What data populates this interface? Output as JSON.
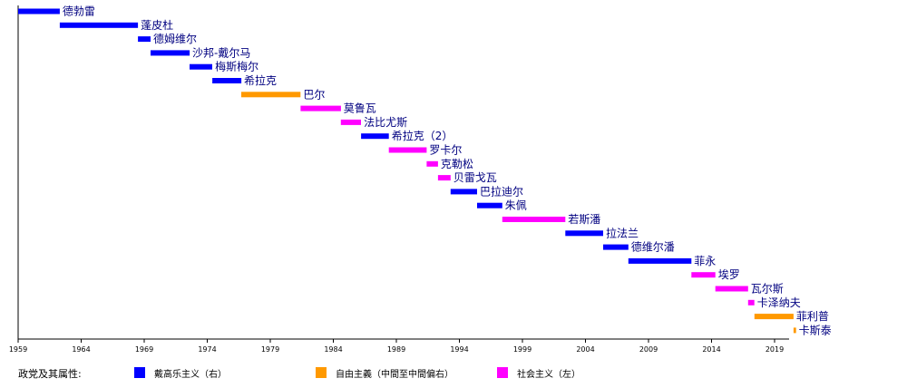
{
  "chart_data": {
    "type": "bar",
    "orientation": "horizontal-timeline",
    "xlim": [
      1959,
      2021
    ],
    "x_ticks": [
      1959,
      1964,
      1969,
      1974,
      1979,
      1984,
      1989,
      1994,
      1999,
      2004,
      2009,
      2014,
      2019
    ],
    "bars": [
      {
        "name": "德勃雷",
        "start": 1959.0,
        "end": 1962.3,
        "party": "gaullist"
      },
      {
        "name": "蓬皮杜",
        "start": 1962.3,
        "end": 1968.5,
        "party": "gaullist"
      },
      {
        "name": "德姆维尔",
        "start": 1968.5,
        "end": 1969.5,
        "party": "gaullist"
      },
      {
        "name": "沙邦-戴尔马",
        "start": 1969.5,
        "end": 1972.6,
        "party": "gaullist"
      },
      {
        "name": "梅斯梅尔",
        "start": 1972.6,
        "end": 1974.4,
        "party": "gaullist"
      },
      {
        "name": "希拉克",
        "start": 1974.4,
        "end": 1976.7,
        "party": "gaullist"
      },
      {
        "name": "巴尔",
        "start": 1976.7,
        "end": 1981.4,
        "party": "liberal"
      },
      {
        "name": "莫鲁瓦",
        "start": 1981.4,
        "end": 1984.6,
        "party": "socialist"
      },
      {
        "name": "法比尤斯",
        "start": 1984.6,
        "end": 1986.2,
        "party": "socialist"
      },
      {
        "name": "希拉克（2）",
        "start": 1986.2,
        "end": 1988.4,
        "party": "gaullist"
      },
      {
        "name": "罗卡尔",
        "start": 1988.4,
        "end": 1991.4,
        "party": "socialist"
      },
      {
        "name": "克勒松",
        "start": 1991.4,
        "end": 1992.3,
        "party": "socialist"
      },
      {
        "name": "贝雷戈瓦",
        "start": 1992.3,
        "end": 1993.3,
        "party": "socialist"
      },
      {
        "name": "巴拉迪尔",
        "start": 1993.3,
        "end": 1995.4,
        "party": "gaullist"
      },
      {
        "name": "朱佩",
        "start": 1995.4,
        "end": 1997.4,
        "party": "gaullist"
      },
      {
        "name": "若斯潘",
        "start": 1997.4,
        "end": 2002.4,
        "party": "socialist"
      },
      {
        "name": "拉法兰",
        "start": 2002.4,
        "end": 2005.4,
        "party": "gaullist"
      },
      {
        "name": "德维尔潘",
        "start": 2005.4,
        "end": 2007.4,
        "party": "gaullist"
      },
      {
        "name": "菲永",
        "start": 2007.4,
        "end": 2012.4,
        "party": "gaullist"
      },
      {
        "name": "埃罗",
        "start": 2012.4,
        "end": 2014.3,
        "party": "socialist"
      },
      {
        "name": "瓦尔斯",
        "start": 2014.3,
        "end": 2016.9,
        "party": "socialist"
      },
      {
        "name": "卡泽纳夫",
        "start": 2016.9,
        "end": 2017.4,
        "party": "socialist"
      },
      {
        "name": "菲利普",
        "start": 2017.4,
        "end": 2020.5,
        "party": "liberal"
      },
      {
        "name": "卡斯泰",
        "start": 2020.5,
        "end": 2020.7,
        "party": "liberal"
      }
    ],
    "legend": {
      "title": "政党及其属性:",
      "placement": "bottom",
      "items": [
        {
          "key": "gaullist",
          "label": "戴高乐主义（右）",
          "color": "#0000ff"
        },
        {
          "key": "liberal",
          "label": "自由主義（中間至中間偏右）",
          "color": "#ff9900"
        },
        {
          "key": "socialist",
          "label": "社会主义（左）",
          "color": "#ff00ff"
        }
      ]
    },
    "label_color": "#000080",
    "grid": false
  }
}
